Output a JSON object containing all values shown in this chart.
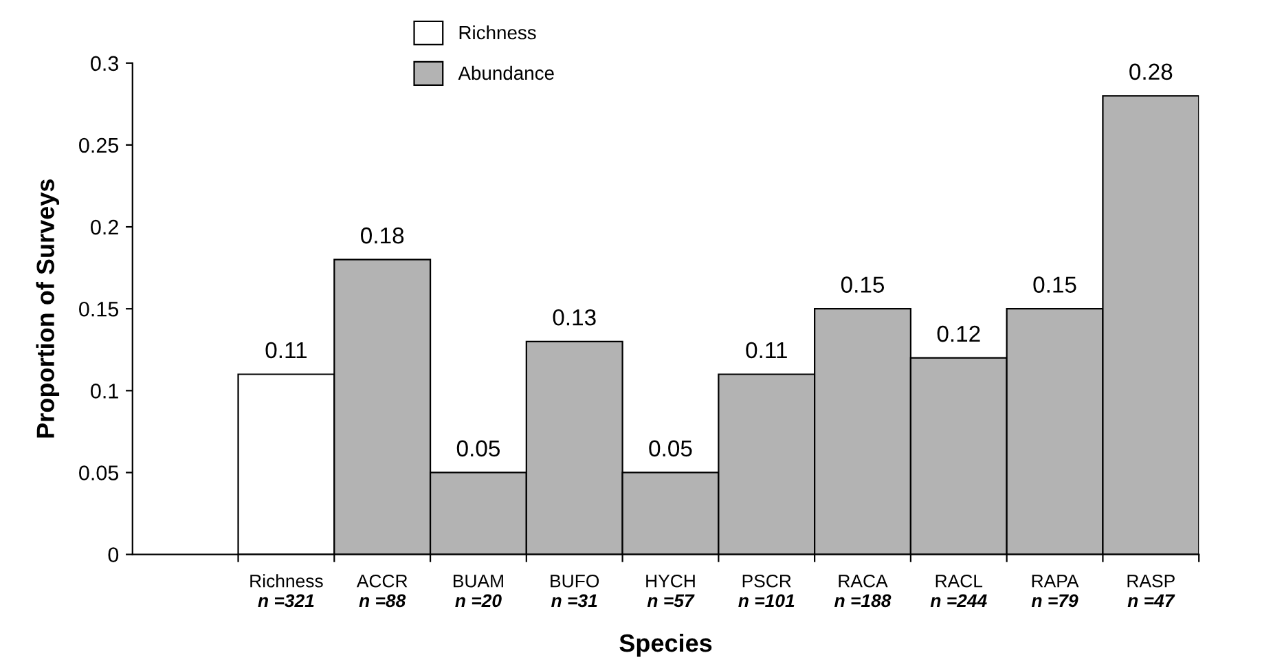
{
  "chart_data": {
    "type": "bar",
    "xlabel": "Species",
    "ylabel": "Proportion of Surveys",
    "categories": [
      "Richness\nn =321",
      "ACCR\nn =88",
      "BUAM\nn =20",
      "BUFO\nn =31",
      "HYCH\nn =57",
      "PSCR\nn =101",
      "RACA\nn =188",
      "RACL\nn =244",
      "RAPA\nn =79",
      "RASP\nn =47"
    ],
    "series": [
      {
        "name": "Richness",
        "color": "#ffffff",
        "values": [
          0.11,
          null,
          null,
          null,
          null,
          null,
          null,
          null,
          null,
          null
        ]
      },
      {
        "name": "Abundance",
        "color": "#b3b3b3",
        "values": [
          null,
          0.18,
          0.05,
          0.13,
          0.05,
          0.11,
          0.15,
          0.12,
          0.15,
          0.28
        ]
      }
    ],
    "ylim": [
      0,
      0.3
    ],
    "yticks": [
      0,
      0.05,
      0.1,
      0.15,
      0.2,
      0.25,
      0.3
    ],
    "data_labels": true,
    "grid": false,
    "legend": "top"
  }
}
